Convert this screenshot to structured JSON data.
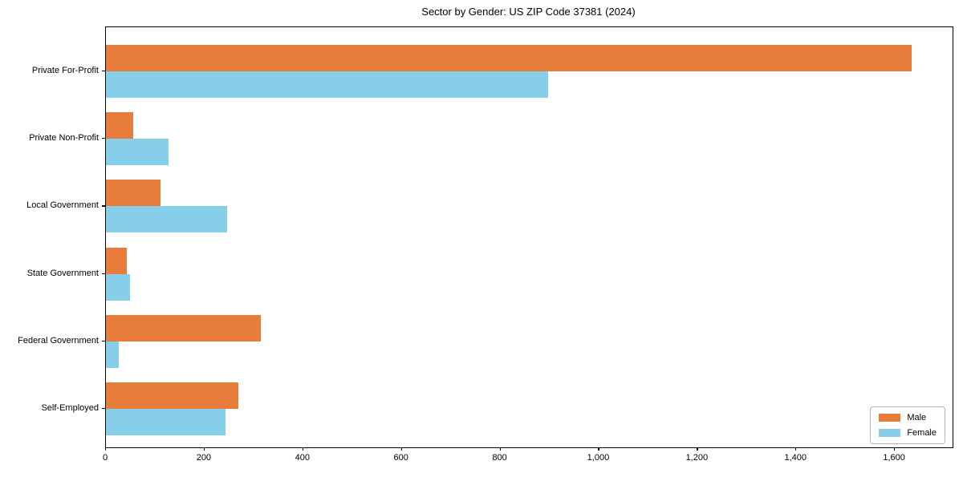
{
  "chart_data": {
    "type": "bar",
    "orientation": "horizontal",
    "title": "Sector by Gender: US ZIP Code 37381 (2024)",
    "categories": [
      "Private For-Profit",
      "Private Non-Profit",
      "Local Government",
      "State Government",
      "Federal Government",
      "Self-Employed"
    ],
    "series": [
      {
        "name": "Male",
        "color": "#e87d3b",
        "values": [
          1634,
          55,
          111,
          42,
          314,
          269
        ]
      },
      {
        "name": "Female",
        "color": "#87ceeb",
        "values": [
          897,
          127,
          246,
          49,
          26,
          243
        ]
      }
    ],
    "xlabel": "",
    "ylabel": "",
    "xlim": [
      0,
      1717
    ],
    "xticks": [
      0,
      200,
      400,
      600,
      800,
      1000,
      1200,
      1400,
      1600
    ],
    "xtick_labels": [
      "0",
      "200",
      "400",
      "600",
      "800",
      "1,000",
      "1,200",
      "1,400",
      "1,600"
    ],
    "grid": false,
    "legend": {
      "position": "lower-right",
      "entries": [
        {
          "label": "Male",
          "color": "#e87d3b"
        },
        {
          "label": "Female",
          "color": "#87ceeb"
        }
      ]
    }
  }
}
